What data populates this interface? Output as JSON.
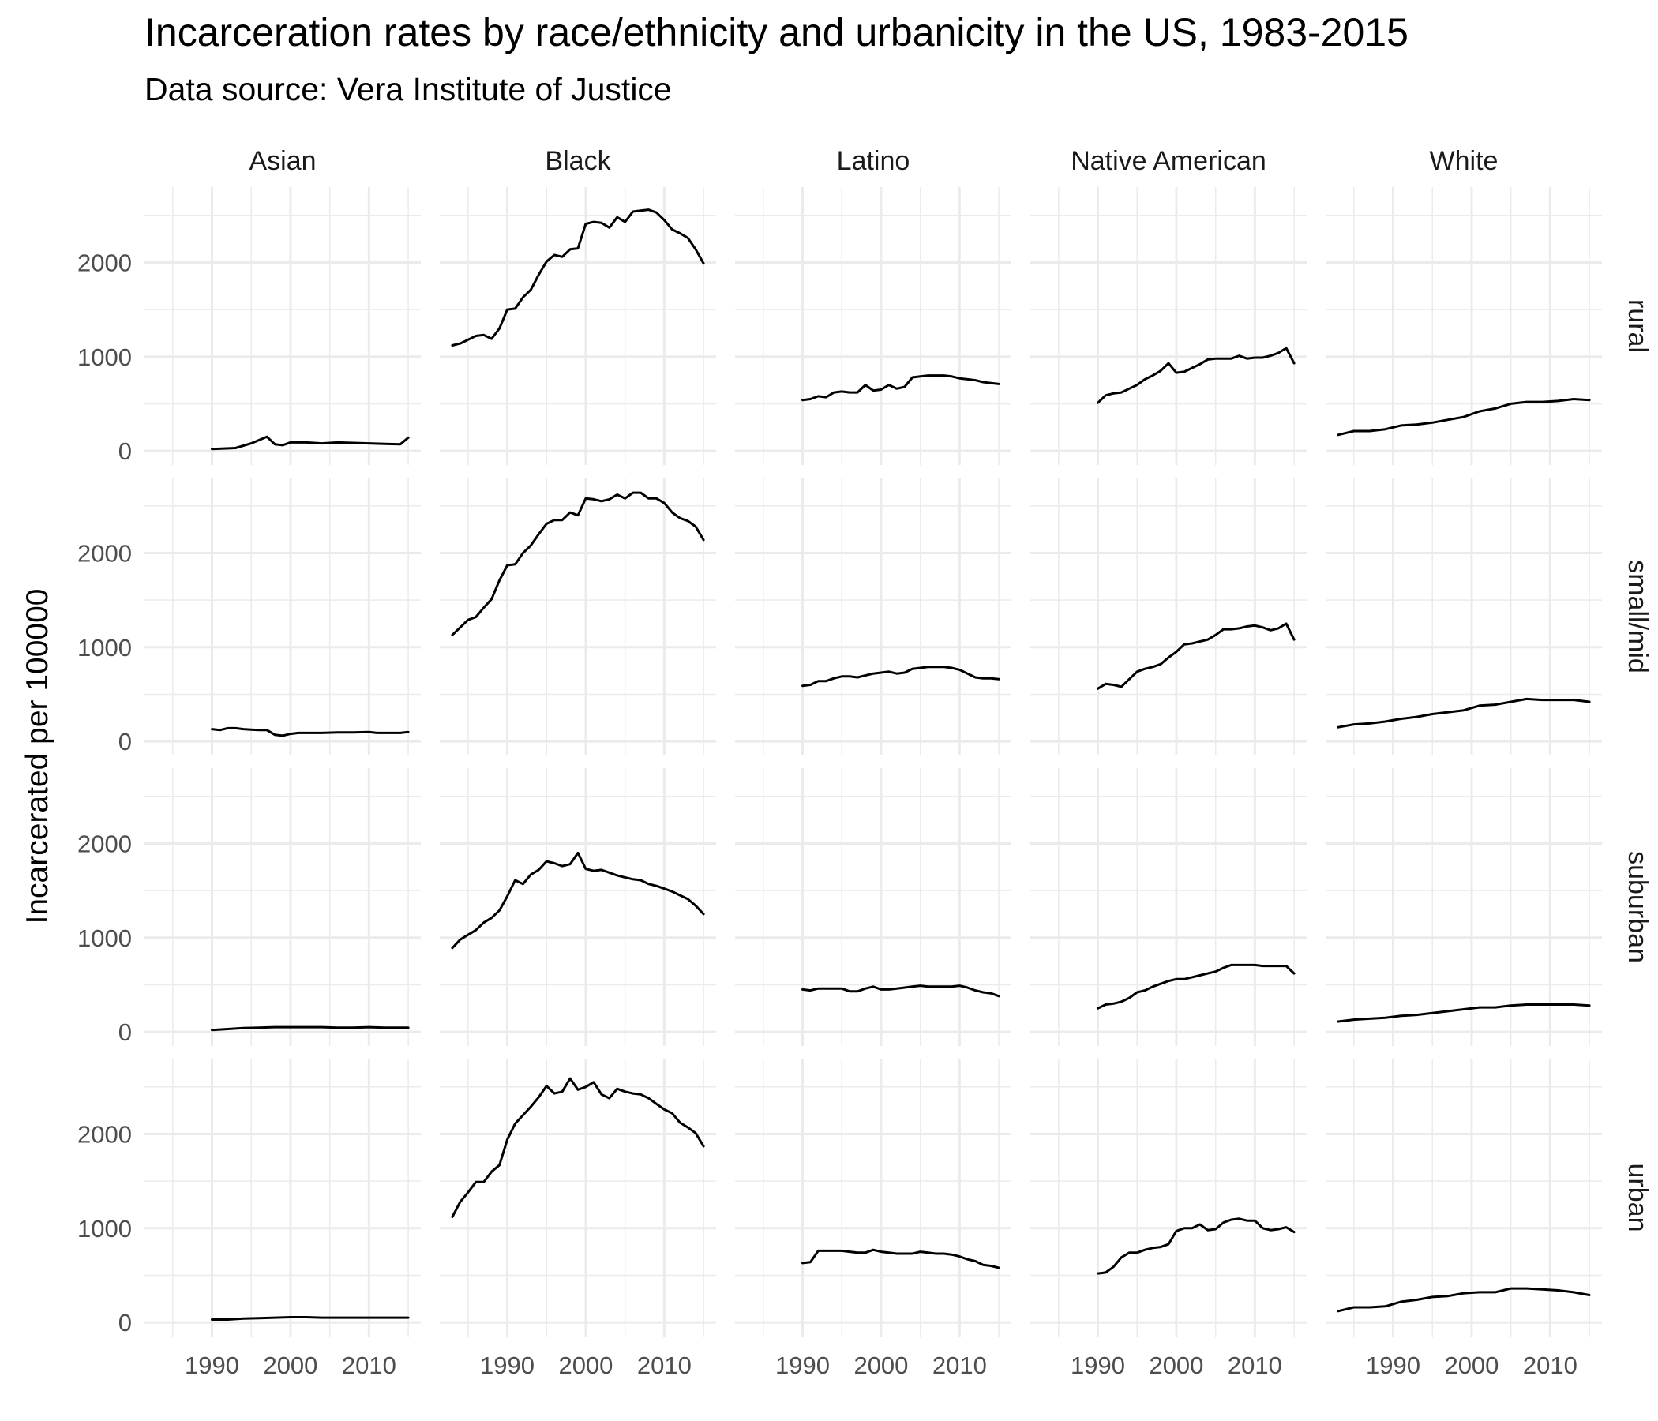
{
  "chart_data": {
    "type": "line",
    "title": "Incarceration rates by race/ethnicity and urbanicity in the US, 1983-2015",
    "subtitle": "Data source: Vera Institute of Justice",
    "xlabel": "",
    "ylabel": "Incarcerated per 100000",
    "xlim": [
      1981.4,
      2016.6
    ],
    "ylim": [
      -150,
      2800
    ],
    "x_ticks": [
      1990,
      2000,
      2010
    ],
    "y_ticks": [
      0,
      1000,
      2000
    ],
    "grid": true,
    "line_color": "#000000",
    "grid_color": "#ebebeb",
    "columns": [
      "Asian",
      "Black",
      "Latino",
      "Native American",
      "White"
    ],
    "rows": [
      "rural",
      "small/mid",
      "suburban",
      "urban"
    ],
    "panels": {
      "rural": {
        "Asian": {
          "x": [
            1990,
            1993,
            1995,
            1997,
            1998,
            1999,
            2000,
            2002,
            2004,
            2006,
            2008,
            2010,
            2012,
            2014,
            2015
          ],
          "y": [
            20,
            30,
            80,
            150,
            70,
            60,
            90,
            90,
            80,
            90,
            85,
            80,
            75,
            70,
            140
          ]
        },
        "Black": {
          "x": [
            1983,
            1984,
            1985,
            1986,
            1987,
            1988,
            1989,
            1990,
            1991,
            1992,
            1993,
            1994,
            1995,
            1996,
            1997,
            1998,
            1999,
            2000,
            2001,
            2002,
            2003,
            2004,
            2005,
            2006,
            2007,
            2008,
            2009,
            2010,
            2011,
            2012,
            2013,
            2014,
            2015
          ],
          "y": [
            1120,
            1140,
            1180,
            1220,
            1230,
            1190,
            1300,
            1500,
            1510,
            1630,
            1710,
            1870,
            2010,
            2080,
            2060,
            2140,
            2150,
            2410,
            2430,
            2420,
            2370,
            2480,
            2430,
            2540,
            2550,
            2560,
            2530,
            2450,
            2350,
            2310,
            2260,
            2140,
            1990
          ]
        },
        "Latino": {
          "x": [
            1990,
            1991,
            1992,
            1993,
            1994,
            1995,
            1996,
            1997,
            1998,
            1999,
            2000,
            2001,
            2002,
            2003,
            2004,
            2005,
            2006,
            2007,
            2008,
            2009,
            2010,
            2011,
            2012,
            2013,
            2014,
            2015
          ],
          "y": [
            540,
            550,
            580,
            570,
            620,
            630,
            620,
            620,
            700,
            640,
            650,
            700,
            660,
            680,
            780,
            790,
            800,
            800,
            800,
            790,
            770,
            760,
            750,
            730,
            720,
            710
          ]
        },
        "Native American": {
          "x": [
            1990,
            1991,
            1992,
            1993,
            1994,
            1995,
            1996,
            1997,
            1998,
            1999,
            2000,
            2001,
            2002,
            2003,
            2004,
            2005,
            2006,
            2007,
            2008,
            2009,
            2010,
            2011,
            2012,
            2013,
            2014,
            2015
          ],
          "y": [
            510,
            590,
            610,
            620,
            660,
            700,
            760,
            800,
            850,
            930,
            830,
            840,
            880,
            920,
            970,
            980,
            980,
            980,
            1010,
            980,
            990,
            990,
            1010,
            1040,
            1090,
            930
          ]
        },
        "White": {
          "x": [
            1983,
            1985,
            1987,
            1989,
            1991,
            1993,
            1995,
            1997,
            1999,
            2001,
            2003,
            2005,
            2007,
            2009,
            2011,
            2013,
            2015
          ],
          "y": [
            170,
            210,
            210,
            230,
            270,
            280,
            300,
            330,
            360,
            420,
            450,
            500,
            520,
            520,
            530,
            550,
            540
          ]
        }
      },
      "small/mid": {
        "Asian": {
          "x": [
            1990,
            1991,
            1992,
            1993,
            1994,
            1995,
            1996,
            1997,
            1998,
            1999,
            2000,
            2001,
            2002,
            2004,
            2006,
            2008,
            2010,
            2011,
            2012,
            2014,
            2015
          ],
          "y": [
            130,
            120,
            140,
            140,
            130,
            125,
            120,
            120,
            70,
            60,
            80,
            90,
            90,
            90,
            95,
            95,
            100,
            90,
            90,
            90,
            100
          ]
        },
        "Black": {
          "x": [
            1983,
            1984,
            1985,
            1986,
            1987,
            1988,
            1989,
            1990,
            1991,
            1992,
            1993,
            1994,
            1995,
            1996,
            1997,
            1998,
            1999,
            2000,
            2001,
            2002,
            2003,
            2004,
            2005,
            2006,
            2007,
            2008,
            2009,
            2010,
            2011,
            2012,
            2013,
            2014,
            2015
          ],
          "y": [
            1130,
            1210,
            1290,
            1320,
            1420,
            1510,
            1710,
            1870,
            1880,
            2000,
            2080,
            2200,
            2310,
            2350,
            2350,
            2430,
            2400,
            2580,
            2570,
            2550,
            2570,
            2620,
            2580,
            2640,
            2640,
            2580,
            2580,
            2530,
            2430,
            2370,
            2340,
            2280,
            2140
          ]
        },
        "Latino": {
          "x": [
            1990,
            1991,
            1992,
            1993,
            1994,
            1995,
            1996,
            1997,
            1998,
            1999,
            2000,
            2001,
            2002,
            2003,
            2004,
            2005,
            2006,
            2007,
            2008,
            2009,
            2010,
            2011,
            2012,
            2013,
            2014,
            2015
          ],
          "y": [
            590,
            600,
            640,
            640,
            670,
            690,
            690,
            680,
            700,
            720,
            730,
            740,
            720,
            730,
            770,
            780,
            790,
            790,
            790,
            780,
            760,
            720,
            680,
            670,
            670,
            660
          ]
        },
        "Native American": {
          "x": [
            1990,
            1991,
            1992,
            1993,
            1994,
            1995,
            1996,
            1997,
            1998,
            1999,
            2000,
            2001,
            2002,
            2003,
            2004,
            2005,
            2006,
            2007,
            2008,
            2009,
            2010,
            2011,
            2012,
            2013,
            2014,
            2015
          ],
          "y": [
            560,
            610,
            600,
            580,
            660,
            740,
            770,
            790,
            820,
            890,
            950,
            1030,
            1040,
            1060,
            1080,
            1130,
            1190,
            1190,
            1200,
            1220,
            1230,
            1210,
            1180,
            1200,
            1250,
            1080
          ]
        },
        "White": {
          "x": [
            1983,
            1985,
            1987,
            1989,
            1991,
            1993,
            1995,
            1997,
            1999,
            2001,
            2003,
            2005,
            2007,
            2009,
            2011,
            2013,
            2015
          ],
          "y": [
            150,
            180,
            190,
            210,
            240,
            260,
            290,
            310,
            330,
            380,
            390,
            420,
            450,
            440,
            440,
            440,
            420
          ]
        }
      },
      "suburban": {
        "Asian": {
          "x": [
            1990,
            1992,
            1994,
            1996,
            1998,
            2000,
            2002,
            2004,
            2006,
            2008,
            2010,
            2012,
            2014,
            2015
          ],
          "y": [
            20,
            30,
            40,
            45,
            50,
            50,
            50,
            50,
            45,
            45,
            50,
            45,
            45,
            45
          ]
        },
        "Black": {
          "x": [
            1983,
            1984,
            1985,
            1986,
            1987,
            1988,
            1989,
            1990,
            1991,
            1992,
            1993,
            1994,
            1995,
            1996,
            1997,
            1998,
            1999,
            2000,
            2001,
            2002,
            2003,
            2004,
            2005,
            2006,
            2007,
            2008,
            2009,
            2010,
            2011,
            2012,
            2013,
            2014,
            2015
          ],
          "y": [
            890,
            980,
            1030,
            1080,
            1160,
            1210,
            1290,
            1440,
            1610,
            1570,
            1670,
            1720,
            1810,
            1790,
            1760,
            1780,
            1900,
            1730,
            1710,
            1720,
            1690,
            1660,
            1640,
            1620,
            1610,
            1570,
            1550,
            1520,
            1490,
            1450,
            1410,
            1340,
            1250
          ]
        },
        "Latino": {
          "x": [
            1990,
            1991,
            1992,
            1993,
            1994,
            1995,
            1996,
            1997,
            1998,
            1999,
            2000,
            2001,
            2002,
            2003,
            2004,
            2005,
            2006,
            2007,
            2008,
            2009,
            2010,
            2011,
            2012,
            2013,
            2014,
            2015
          ],
          "y": [
            450,
            440,
            460,
            460,
            460,
            460,
            430,
            430,
            460,
            480,
            450,
            450,
            460,
            470,
            480,
            490,
            480,
            480,
            480,
            480,
            490,
            470,
            440,
            420,
            410,
            380
          ]
        },
        "Native American": {
          "x": [
            1990,
            1991,
            1992,
            1993,
            1994,
            1995,
            1996,
            1997,
            1998,
            1999,
            2000,
            2001,
            2002,
            2003,
            2004,
            2005,
            2006,
            2007,
            2008,
            2009,
            2010,
            2011,
            2012,
            2013,
            2014,
            2015
          ],
          "y": [
            250,
            290,
            300,
            320,
            360,
            420,
            440,
            480,
            510,
            540,
            560,
            560,
            580,
            600,
            620,
            640,
            680,
            710,
            710,
            710,
            710,
            700,
            700,
            700,
            700,
            620
          ]
        },
        "White": {
          "x": [
            1983,
            1985,
            1987,
            1989,
            1991,
            1993,
            1995,
            1997,
            1999,
            2001,
            2003,
            2005,
            2007,
            2009,
            2011,
            2013,
            2015
          ],
          "y": [
            110,
            130,
            140,
            150,
            170,
            180,
            200,
            220,
            240,
            260,
            260,
            280,
            290,
            290,
            290,
            290,
            280
          ]
        }
      },
      "urban": {
        "Asian": {
          "x": [
            1990,
            1992,
            1994,
            1996,
            1998,
            2000,
            2002,
            2004,
            2006,
            2008,
            2010,
            2012,
            2014,
            2015
          ],
          "y": [
            30,
            30,
            40,
            45,
            50,
            55,
            55,
            50,
            50,
            50,
            50,
            50,
            50,
            50
          ]
        },
        "Black": {
          "x": [
            1983,
            1984,
            1985,
            1986,
            1987,
            1988,
            1989,
            1990,
            1991,
            1992,
            1993,
            1994,
            1995,
            1996,
            1997,
            1998,
            1999,
            2000,
            2001,
            2002,
            2003,
            2004,
            2005,
            2006,
            2007,
            2008,
            2009,
            2010,
            2011,
            2012,
            2013,
            2014,
            2015
          ],
          "y": [
            1120,
            1280,
            1380,
            1490,
            1490,
            1600,
            1670,
            1940,
            2110,
            2200,
            2290,
            2390,
            2510,
            2430,
            2450,
            2590,
            2470,
            2500,
            2550,
            2420,
            2380,
            2480,
            2450,
            2430,
            2420,
            2380,
            2320,
            2260,
            2220,
            2120,
            2070,
            2010,
            1870
          ]
        },
        "Latino": {
          "x": [
            1990,
            1991,
            1992,
            1993,
            1994,
            1995,
            1996,
            1997,
            1998,
            1999,
            2000,
            2001,
            2002,
            2003,
            2004,
            2005,
            2006,
            2007,
            2008,
            2009,
            2010,
            2011,
            2012,
            2013,
            2014,
            2015
          ],
          "y": [
            630,
            640,
            760,
            760,
            760,
            760,
            750,
            740,
            740,
            770,
            750,
            740,
            730,
            730,
            730,
            750,
            740,
            730,
            730,
            720,
            700,
            670,
            650,
            610,
            600,
            580
          ]
        },
        "Native American": {
          "x": [
            1990,
            1991,
            1992,
            1993,
            1994,
            1995,
            1996,
            1997,
            1998,
            1999,
            2000,
            2001,
            2002,
            2003,
            2004,
            2005,
            2006,
            2007,
            2008,
            2009,
            2010,
            2011,
            2012,
            2013,
            2014,
            2015
          ],
          "y": [
            520,
            530,
            590,
            690,
            740,
            740,
            770,
            790,
            800,
            830,
            970,
            1000,
            1000,
            1040,
            980,
            990,
            1060,
            1090,
            1100,
            1080,
            1080,
            1000,
            980,
            990,
            1010,
            960
          ]
        },
        "White": {
          "x": [
            1983,
            1985,
            1987,
            1989,
            1991,
            1993,
            1995,
            1997,
            1999,
            2001,
            2003,
            2005,
            2007,
            2009,
            2011,
            2013,
            2015
          ],
          "y": [
            120,
            160,
            160,
            170,
            220,
            240,
            270,
            280,
            310,
            320,
            320,
            360,
            360,
            350,
            340,
            320,
            290
          ]
        }
      }
    }
  }
}
